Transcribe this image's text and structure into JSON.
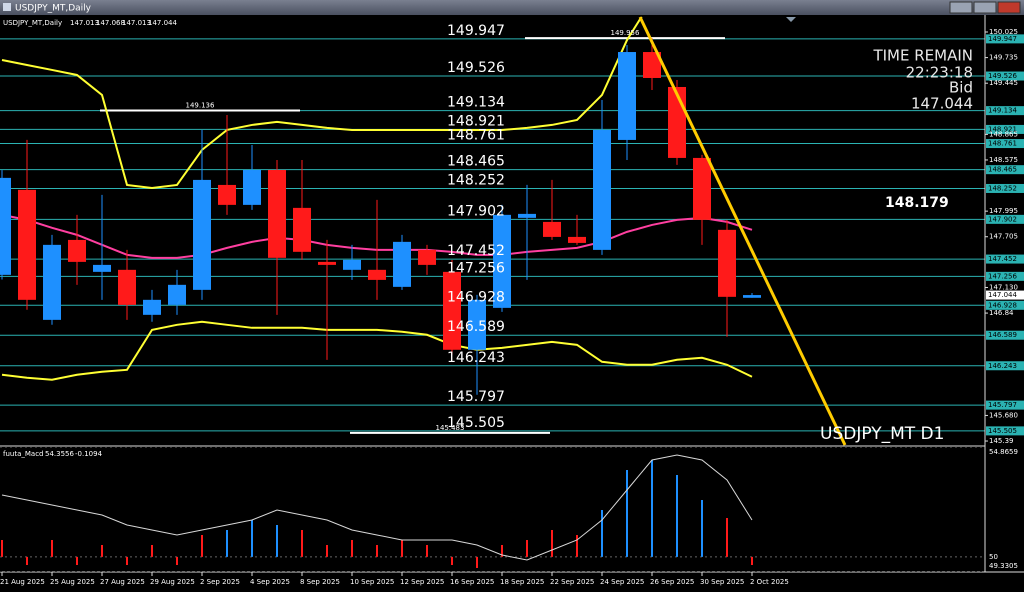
{
  "window": {
    "title": "USDJPY_MT,Daily"
  },
  "chart_data": [
    {
      "type": "candlestick",
      "title": "USDJPY_MT,Daily",
      "categories": [
        "21 Aug 2025",
        null,
        "25 Aug 2025",
        null,
        "27 Aug 2025",
        null,
        "29 Aug 2025",
        null,
        "2 Sep 2025",
        null,
        "4 Sep 2025",
        null,
        "8 Sep 2025",
        null,
        "10 Sep 2025",
        null,
        "12 Sep 2025",
        null,
        "16 Sep 2025",
        null,
        "18 Sep 2025",
        null,
        "22 Sep 2025",
        null,
        "24 Sep 2025",
        null,
        "26 Sep 2025",
        null,
        "30 Sep 2025",
        null,
        "2 Oct 2025"
      ],
      "open": [
        147.273,
        148.236,
        146.763,
        147.669,
        147.307,
        147.33,
        146.82,
        146.933,
        147.103,
        148.292,
        148.066,
        148.462,
        148.032,
        147.42,
        147.33,
        147.33,
        147.137,
        147.556,
        147.307,
        146.424,
        146.899,
        147.919,
        147.873,
        147.703,
        147.556,
        148.802,
        149.798,
        149.402,
        148.598,
        147.783,
        147.013
      ],
      "high": [
        148.46,
        148.802,
        147.726,
        147.953,
        148.179,
        147.556,
        147.103,
        147.33,
        148.915,
        149.085,
        148.745,
        148.575,
        148.575,
        147.669,
        147.613,
        148.122,
        147.726,
        147.613,
        147.443,
        147.046,
        148.066,
        148.292,
        148.349,
        147.953,
        149.255,
        149.878,
        149.956,
        149.481,
        148.632,
        147.896,
        147.068
      ],
      "low": [
        147.22,
        146.877,
        146.707,
        147.16,
        146.99,
        146.763,
        146.741,
        146.82,
        146.99,
        147.953,
        148.009,
        146.82,
        147.443,
        146.31,
        147.216,
        146.99,
        147.103,
        147.273,
        146.367,
        145.914,
        146.854,
        147.216,
        147.669,
        147.613,
        147.5,
        148.575,
        149.368,
        148.519,
        147.613,
        146.571,
        147.013
      ],
      "close": [
        148.372,
        146.99,
        147.613,
        147.42,
        147.386,
        146.933,
        146.99,
        147.16,
        148.349,
        148.066,
        148.462,
        147.466,
        147.534,
        147.386,
        147.443,
        147.216,
        147.647,
        147.386,
        146.424,
        146.99,
        147.953,
        147.964,
        147.703,
        147.635,
        148.915,
        149.798,
        149.504,
        148.598,
        147.896,
        147.024,
        147.044
      ],
      "up_color": "#1e90ff",
      "down_color": "#ff1a1a",
      "overlays": [
        {
          "color": "#ffff33",
          "values": [
            149.708,
            149.651,
            149.595,
            149.538,
            149.312,
            148.292,
            148.258,
            148.292,
            148.689,
            148.915,
            148.972,
            149.006,
            148.972,
            148.938,
            148.915,
            148.915,
            148.915,
            148.915,
            148.915,
            148.915,
            148.915,
            148.938,
            148.972,
            149.028,
            149.312,
            149.934,
            150.387,
            null,
            null,
            null,
            null
          ]
        },
        {
          "color": "#ffff33",
          "values": [
            146.141,
            146.107,
            146.084,
            146.141,
            146.175,
            146.197,
            146.65,
            146.707,
            146.741,
            146.707,
            146.673,
            146.673,
            146.673,
            146.65,
            146.65,
            146.65,
            146.628,
            146.594,
            146.48,
            146.424,
            146.446,
            146.48,
            146.514,
            146.48,
            146.288,
            146.254,
            146.254,
            146.311,
            146.333,
            146.254,
            146.118
          ]
        },
        {
          "color": "#ff3fa0",
          "values": [
            147.953,
            147.896,
            147.806,
            147.726,
            147.613,
            147.5,
            147.466,
            147.466,
            147.5,
            147.579,
            147.647,
            147.692,
            147.669,
            147.613,
            147.579,
            147.556,
            147.556,
            147.556,
            147.534,
            147.5,
            147.5,
            147.534,
            147.556,
            147.579,
            147.647,
            147.76,
            147.839,
            147.896,
            147.919,
            147.873,
            147.783
          ]
        }
      ],
      "levels": [
        149.947,
        149.526,
        149.134,
        148.921,
        148.761,
        148.465,
        148.252,
        147.902,
        147.452,
        147.256,
        146.928,
        146.589,
        146.243,
        145.797,
        145.505
      ],
      "level_color": "#2bb3b3",
      "marked_levels": [
        149.956,
        149.136,
        145.483
      ],
      "annotation": "148.179",
      "info": {
        "label": "TIME REMAIN",
        "time": "22:23:18",
        "bid_label": "Bid"
      },
      "symbol_label": "USDJPY_MT D1",
      "ylim": [
        145.345,
        150.195
      ],
      "yticks": [
        150.025,
        149.735,
        149.445,
        148.865,
        148.575,
        147.995,
        147.705,
        {
          "value": 147.13,
          "label": "147.130"
        },
        146.84,
        {
          "value": 145.68,
          "label": "145.680"
        },
        145.39
      ]
    },
    {
      "type": "histogram",
      "title": "fuuta_Macd",
      "header_values": [
        54.3556,
        -0.1094
      ],
      "values": [
        50.748,
        49.641,
        50.748,
        49.641,
        50.526,
        49.641,
        50.526,
        49.641,
        50.969,
        51.191,
        51.633,
        51.412,
        51.191,
        50.526,
        50.748,
        50.526,
        50.748,
        50.526,
        49.641,
        49.508,
        50.526,
        50.748,
        51.191,
        50.969,
        52.076,
        53.847,
        54.29,
        53.626,
        52.519,
        51.722,
        49.641
      ],
      "colors": [
        "#ff1a1a",
        "#ff1a1a",
        "#ff1a1a",
        "#ff1a1a",
        "#ff1a1a",
        "#ff1a1a",
        "#ff1a1a",
        "#ff1a1a",
        "#ff1a1a",
        "#1e90ff",
        "#1e90ff",
        "#1e90ff",
        "#ff1a1a",
        "#ff1a1a",
        "#ff1a1a",
        "#ff1a1a",
        "#ff1a1a",
        "#ff1a1a",
        "#ff1a1a",
        "#ff1a1a",
        "#ff1a1a",
        "#ff1a1a",
        "#ff1a1a",
        "#ff1a1a",
        "#1e90ff",
        "#1e90ff",
        "#1e90ff",
        "#1e90ff",
        "#1e90ff",
        "#ff1a1a",
        "#ff1a1a"
      ],
      "signal": {
        "color": "#d8d8d8",
        "values": [
          52.74,
          52.519,
          52.297,
          52.076,
          51.855,
          51.412,
          51.191,
          50.969,
          51.191,
          51.412,
          51.633,
          52.076,
          51.855,
          51.633,
          51.191,
          50.969,
          50.748,
          50.748,
          50.748,
          50.526,
          50.083,
          49.862,
          50.305,
          50.748,
          51.633,
          52.962,
          54.29,
          54.512,
          54.29,
          53.405,
          51.633
        ]
      },
      "ylim": [
        49.3305,
        54.8659
      ],
      "yticks": [
        54.8659,
        50,
        49.3305
      ]
    }
  ]
}
